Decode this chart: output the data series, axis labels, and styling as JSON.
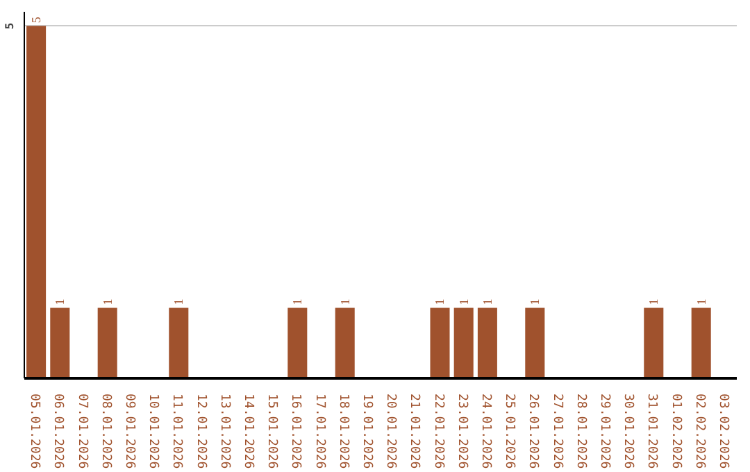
{
  "chart_data": {
    "type": "bar",
    "categories": [
      "05.01.2026",
      "06.01.2026",
      "07.01.2026",
      "08.01.2026",
      "09.01.2026",
      "10.01.2026",
      "11.01.2026",
      "12.01.2026",
      "13.01.2026",
      "14.01.2026",
      "15.01.2026",
      "16.01.2026",
      "17.01.2026",
      "18.01.2026",
      "19.01.2026",
      "20.01.2026",
      "21.01.2026",
      "22.01.2026",
      "23.01.2026",
      "24.01.2026",
      "25.01.2026",
      "26.01.2026",
      "27.01.2026",
      "28.01.2026",
      "29.01.2026",
      "30.01.2026",
      "31.01.2026",
      "01.02.2026",
      "02.02.2026",
      "03.02.2026"
    ],
    "values": [
      5,
      1,
      null,
      1,
      null,
      null,
      1,
      null,
      null,
      null,
      null,
      1,
      null,
      1,
      null,
      null,
      null,
      1,
      1,
      1,
      null,
      1,
      null,
      null,
      null,
      null,
      1,
      null,
      1,
      null
    ],
    "color": "#a0522d",
    "ylim": [
      0,
      5.2
    ],
    "yticks": [
      5
    ],
    "grid": "y",
    "data_labels": true
  }
}
